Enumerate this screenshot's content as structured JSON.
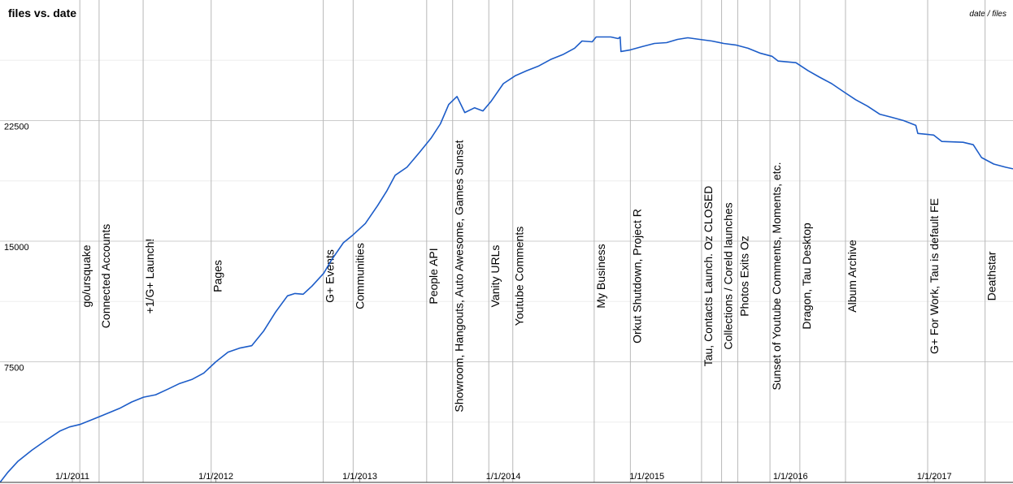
{
  "chart_data": {
    "type": "line",
    "title": "files vs. date",
    "legend_label": "date / files",
    "xlabel": "",
    "ylabel": "",
    "xlim": [
      "2010-07-01",
      "2017-07-20"
    ],
    "ylim": [
      0,
      30000
    ],
    "y_ticks": [
      7500,
      15000,
      22500
    ],
    "x_ticks": [
      "1/1/2011",
      "1/1/2012",
      "1/1/2013",
      "1/1/2014",
      "1/1/2015",
      "1/1/2016",
      "1/1/2017"
    ],
    "x_tick_dates": [
      "2011-01-01",
      "2012-01-01",
      "2013-01-01",
      "2014-01-01",
      "2015-01-01",
      "2016-01-01",
      "2017-01-01"
    ],
    "grid": true,
    "series": [
      {
        "color": "#1c5cc8",
        "points": [
          [
            "2010-07-01",
            0
          ],
          [
            "2010-07-20",
            600
          ],
          [
            "2010-08-15",
            1300
          ],
          [
            "2010-09-20",
            2000
          ],
          [
            "2010-10-25",
            2600
          ],
          [
            "2010-12-01",
            3200
          ],
          [
            "2010-12-25",
            3450
          ],
          [
            "2011-01-20",
            3600
          ],
          [
            "2011-02-20",
            3900
          ],
          [
            "2011-04-01",
            4300
          ],
          [
            "2011-05-01",
            4600
          ],
          [
            "2011-06-01",
            5000
          ],
          [
            "2011-07-01",
            5300
          ],
          [
            "2011-08-01",
            5450
          ],
          [
            "2011-09-01",
            5800
          ],
          [
            "2011-10-01",
            6150
          ],
          [
            "2011-11-01",
            6400
          ],
          [
            "2011-12-01",
            6800
          ],
          [
            "2012-01-01",
            7500
          ],
          [
            "2012-02-01",
            8100
          ],
          [
            "2012-03-01",
            8350
          ],
          [
            "2012-04-01",
            8500
          ],
          [
            "2012-05-01",
            9400
          ],
          [
            "2012-06-01",
            10600
          ],
          [
            "2012-07-01",
            11600
          ],
          [
            "2012-07-20",
            11750
          ],
          [
            "2012-08-10",
            11700
          ],
          [
            "2012-09-01",
            12200
          ],
          [
            "2012-10-01",
            13000
          ],
          [
            "2012-10-20",
            13800
          ],
          [
            "2012-11-20",
            14900
          ],
          [
            "2012-12-15",
            15400
          ],
          [
            "2013-01-15",
            16100
          ],
          [
            "2013-02-15",
            17200
          ],
          [
            "2013-03-10",
            18100
          ],
          [
            "2013-04-01",
            19100
          ],
          [
            "2013-05-01",
            19600
          ],
          [
            "2013-06-01",
            20500
          ],
          [
            "2013-07-01",
            21400
          ],
          [
            "2013-07-25",
            22300
          ],
          [
            "2013-08-15",
            23500
          ],
          [
            "2013-09-05",
            24000
          ],
          [
            "2013-09-25",
            23000
          ],
          [
            "2013-10-20",
            23300
          ],
          [
            "2013-11-10",
            23100
          ],
          [
            "2013-12-01",
            23700
          ],
          [
            "2014-01-01",
            24800
          ],
          [
            "2014-02-01",
            25300
          ],
          [
            "2014-03-01",
            25600
          ],
          [
            "2014-04-01",
            25900
          ],
          [
            "2014-05-01",
            26300
          ],
          [
            "2014-06-01",
            26600
          ],
          [
            "2014-07-01",
            27000
          ],
          [
            "2014-07-20",
            27450
          ],
          [
            "2014-08-15",
            27400
          ],
          [
            "2014-08-25",
            27700
          ],
          [
            "2014-10-01",
            27700
          ],
          [
            "2014-10-20",
            27600
          ],
          [
            "2014-10-25",
            27700
          ],
          [
            "2014-10-27",
            26800
          ],
          [
            "2014-11-20",
            26900
          ],
          [
            "2014-12-20",
            27100
          ],
          [
            "2015-01-20",
            27300
          ],
          [
            "2015-02-20",
            27350
          ],
          [
            "2015-03-20",
            27550
          ],
          [
            "2015-04-15",
            27650
          ],
          [
            "2015-05-15",
            27550
          ],
          [
            "2015-06-15",
            27450
          ],
          [
            "2015-07-15",
            27300
          ],
          [
            "2015-08-15",
            27200
          ],
          [
            "2015-09-15",
            27000
          ],
          [
            "2015-10-15",
            26700
          ],
          [
            "2015-11-15",
            26500
          ],
          [
            "2015-12-01",
            26200
          ],
          [
            "2016-01-15",
            26100
          ],
          [
            "2016-02-15",
            25600
          ],
          [
            "2016-03-15",
            25200
          ],
          [
            "2016-04-15",
            24800
          ],
          [
            "2016-05-15",
            24300
          ],
          [
            "2016-06-15",
            23800
          ],
          [
            "2016-07-15",
            23400
          ],
          [
            "2016-08-15",
            22900
          ],
          [
            "2016-09-15",
            22700
          ],
          [
            "2016-10-15",
            22500
          ],
          [
            "2016-11-15",
            22200
          ],
          [
            "2016-11-20",
            21700
          ],
          [
            "2016-12-30",
            21600
          ],
          [
            "2017-01-20",
            21200
          ],
          [
            "2017-03-15",
            21150
          ],
          [
            "2017-04-10",
            21000
          ],
          [
            "2017-05-01",
            20200
          ],
          [
            "2017-06-01",
            19800
          ],
          [
            "2017-07-01",
            19600
          ],
          [
            "2017-07-20",
            19500
          ]
        ]
      }
    ],
    "annotations": [
      {
        "date": "2011-01-20",
        "label": "go/ursquake"
      },
      {
        "date": "2011-03-10",
        "label": "Connected Accounts"
      },
      {
        "date": "2011-06-30",
        "label": "+1/G+ Launch!"
      },
      {
        "date": "2011-12-20",
        "label": "Pages"
      },
      {
        "date": "2012-09-30",
        "label": "G+ Events"
      },
      {
        "date": "2012-12-15",
        "label": "Communities"
      },
      {
        "date": "2013-06-20",
        "label": "People API"
      },
      {
        "date": "2013-08-25",
        "label": "Showroom, Hangouts, Auto Awesome, Games Sunset"
      },
      {
        "date": "2013-11-25",
        "label": "Vanity URLs"
      },
      {
        "date": "2014-01-25",
        "label": "Youtube Comments"
      },
      {
        "date": "2014-08-20",
        "label": "My Business"
      },
      {
        "date": "2014-11-20",
        "label": "Orkut Shutdown, Project R"
      },
      {
        "date": "2015-05-20",
        "label": "Tau, Contacts Launch. Oz CLOSED"
      },
      {
        "date": "2015-07-10",
        "label": "Collections / Coreld launches"
      },
      {
        "date": "2015-08-20",
        "label": "Photos Exits Oz"
      },
      {
        "date": "2015-11-10",
        "label": "Sunset of Youtube Comments, Moments, etc."
      },
      {
        "date": "2016-01-25",
        "label": "Dragon, Tau Desktop"
      },
      {
        "date": "2016-05-20",
        "label": "Album Archive"
      },
      {
        "date": "2016-12-15",
        "label": "G+ For Work, Tau is default FE"
      },
      {
        "date": "2017-05-10",
        "label": "Deathstar"
      }
    ]
  }
}
